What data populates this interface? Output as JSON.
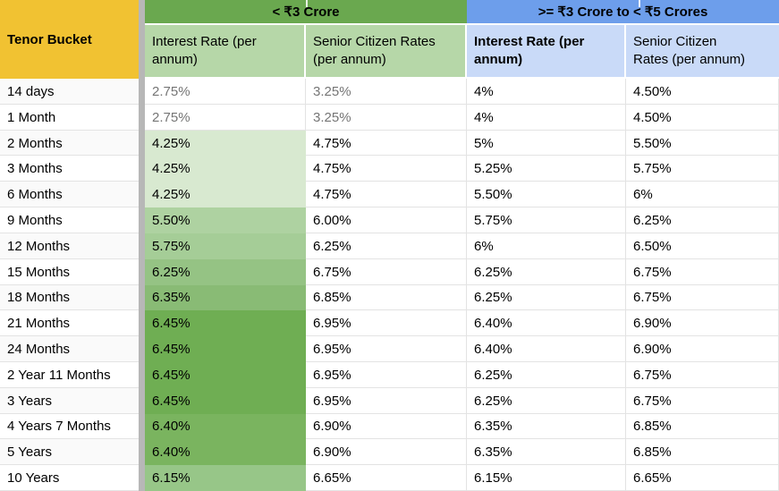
{
  "palette": {
    "tenor_header_bg": "#f1c232",
    "group1_header_bg": "#6aa84f",
    "group1_subheader_bg": "#b6d7a8",
    "group2_header_bg": "#6d9eeb",
    "group2_subheader_bg": "#c9daf8",
    "separator_column_bg": "#b7b7b7",
    "gridline": "#e3e3e3",
    "muted_value_text": "#757575",
    "gradient_min_fill": "#d8e9d0",
    "gradient_max_fill": "#6fae53"
  },
  "header": {
    "tenor_label": "Tenor Bucket",
    "group1_label": "< ₹3 Crore",
    "group2_label": ">= ₹3 Crore to < ₹5 Crores",
    "subheaders": [
      {
        "label": "Interest Rate (per annum)",
        "bold": false
      },
      {
        "label": "Senior Citizen Rates (per annum)",
        "bold": false
      },
      {
        "label": "Interest Rate (per annum)",
        "bold": true
      },
      {
        "label": "Senior Citizen Rates (per annum)",
        "bold": false
      }
    ]
  },
  "rows": [
    {
      "tenor": "14 days",
      "g1": "2.75%",
      "g2": "3.25%",
      "b1": "4%",
      "b2": "4.50%",
      "fill": null,
      "muted": true
    },
    {
      "tenor": "1 Month",
      "g1": "2.75%",
      "g2": "3.25%",
      "b1": "4%",
      "b2": "4.50%",
      "fill": null,
      "muted": true
    },
    {
      "tenor": "2 Months",
      "g1": "4.25%",
      "g2": "4.75%",
      "b1": "5%",
      "b2": "5.50%",
      "fill": "#d8e9d0",
      "muted": false
    },
    {
      "tenor": "3 Months",
      "g1": "4.25%",
      "g2": "4.75%",
      "b1": "5.25%",
      "b2": "5.75%",
      "fill": "#d8e9d0",
      "muted": false
    },
    {
      "tenor": "6 Months",
      "g1": "4.25%",
      "g2": "4.75%",
      "b1": "5.50%",
      "b2": "6%",
      "fill": "#d8e9d0",
      "muted": false
    },
    {
      "tenor": "9 Months",
      "g1": "5.50%",
      "g2": "6.00%",
      "b1": "5.75%",
      "b2": "6.25%",
      "fill": "#aed2a1",
      "muted": false
    },
    {
      "tenor": "12 Months",
      "g1": "5.75%",
      "g2": "6.25%",
      "b1": "6%",
      "b2": "6.50%",
      "fill": "#a5cd97",
      "muted": false
    },
    {
      "tenor": "15 Months",
      "g1": "6.25%",
      "g2": "6.75%",
      "b1": "6.25%",
      "b2": "6.75%",
      "fill": "#95c384",
      "muted": false
    },
    {
      "tenor": "18 Months",
      "g1": "6.35%",
      "g2": "6.85%",
      "b1": "6.25%",
      "b2": "6.75%",
      "fill": "#89bb75",
      "muted": false
    },
    {
      "tenor": "21 Months",
      "g1": "6.45%",
      "g2": "6.95%",
      "b1": "6.40%",
      "b2": "6.90%",
      "fill": "#6fae53",
      "muted": false
    },
    {
      "tenor": "24 Months",
      "g1": "6.45%",
      "g2": "6.95%",
      "b1": "6.40%",
      "b2": "6.90%",
      "fill": "#6fae53",
      "muted": false
    },
    {
      "tenor": "2 Year 11 Months",
      "g1": "6.45%",
      "g2": "6.95%",
      "b1": "6.25%",
      "b2": "6.75%",
      "fill": "#6fae53",
      "muted": false
    },
    {
      "tenor": "3 Years",
      "g1": "6.45%",
      "g2": "6.95%",
      "b1": "6.25%",
      "b2": "6.75%",
      "fill": "#6fae53",
      "muted": false
    },
    {
      "tenor": "4 Years 7 Months",
      "g1": "6.40%",
      "g2": "6.90%",
      "b1": "6.35%",
      "b2": "6.85%",
      "fill": "#7ab45f",
      "muted": false
    },
    {
      "tenor": "5 Years",
      "g1": "6.40%",
      "g2": "6.90%",
      "b1": "6.35%",
      "b2": "6.85%",
      "fill": "#7ab45f",
      "muted": false
    },
    {
      "tenor": "10 Years",
      "g1": "6.15%",
      "g2": "6.65%",
      "b1": "6.15%",
      "b2": "6.65%",
      "fill": "#97c688",
      "muted": false
    }
  ]
}
